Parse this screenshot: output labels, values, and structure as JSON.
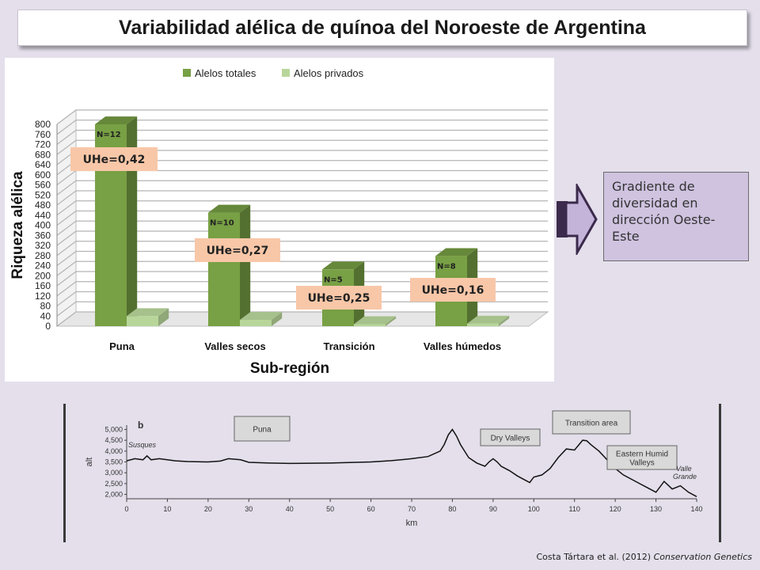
{
  "title": "Variabilidad alélica de quínoa del Noroeste de Argentina",
  "chart_data": [
    {
      "type": "bar",
      "title": "",
      "xlabel": "Sub-región",
      "ylabel": "Riqueza alélica",
      "ylim": [
        0,
        800
      ],
      "yticks": [
        0,
        40,
        80,
        120,
        160,
        200,
        240,
        280,
        320,
        360,
        400,
        440,
        480,
        520,
        560,
        600,
        640,
        680,
        720,
        760,
        800
      ],
      "grid": true,
      "legend_placement": "top",
      "categories": [
        "Puna",
        "Valles secos",
        "Transición",
        "Valles húmedos"
      ],
      "series": [
        {
          "name": "Alelos totales",
          "color": "#78a044",
          "values": [
            800,
            450,
            225,
            278
          ]
        },
        {
          "name": "Alelos privados",
          "color": "#b8d69a",
          "values": [
            40,
            25,
            8,
            10
          ]
        }
      ],
      "sample_labels": [
        "N=12",
        "N=10",
        "N=5",
        "N=8"
      ],
      "uhe_labels": [
        "UHe=0,42",
        "UHe=0,27",
        "UHe=0,25",
        "UHe=0,16"
      ]
    },
    {
      "type": "line",
      "panel_label": "b",
      "xlabel": "km",
      "ylabel": "alt",
      "xlim": [
        0,
        140
      ],
      "xticks": [
        0,
        10,
        20,
        30,
        40,
        50,
        60,
        70,
        80,
        90,
        100,
        110,
        120,
        130,
        140
      ],
      "ylim": [
        1800,
        5200
      ],
      "yticks": [
        2000,
        2500,
        3000,
        3500,
        4000,
        4500,
        5000
      ],
      "ytick_labels": [
        "2,000",
        "2,500",
        "3,000",
        "3,500",
        "4,000",
        "4,500",
        "5,000"
      ],
      "x": [
        0,
        2,
        4,
        5,
        6,
        8,
        10,
        12,
        15,
        20,
        23,
        25,
        28,
        30,
        35,
        40,
        50,
        60,
        65,
        70,
        74,
        77,
        78,
        79,
        80,
        81,
        82,
        84,
        86,
        88,
        89,
        90,
        91,
        92,
        94,
        96,
        98,
        99,
        100,
        102,
        104,
        106,
        108,
        110,
        112,
        113,
        114,
        116,
        118,
        120,
        122,
        124,
        126,
        128,
        130,
        132,
        134,
        136,
        138,
        140
      ],
      "y": [
        3550,
        3650,
        3600,
        3780,
        3600,
        3650,
        3600,
        3550,
        3520,
        3500,
        3540,
        3650,
        3600,
        3480,
        3450,
        3430,
        3450,
        3500,
        3560,
        3650,
        3750,
        4000,
        4300,
        4750,
        5000,
        4700,
        4300,
        3700,
        3450,
        3300,
        3500,
        3650,
        3500,
        3300,
        3100,
        2850,
        2650,
        2550,
        2800,
        2900,
        3200,
        3700,
        4100,
        4050,
        4500,
        4480,
        4300,
        4000,
        3600,
        3200,
        2900,
        2700,
        2500,
        2300,
        2100,
        2600,
        2250,
        2400,
        2100,
        1900
      ]
    }
  ],
  "profile_labels": {
    "puna": "Puna",
    "dry_valleys": "Dry Valleys",
    "transition": "Transition area",
    "humid_line1": "Eastern Humid",
    "humid_line2": "Valleys",
    "susques": "Susques",
    "valle_line1": "Valle",
    "valle_line2": "Grande"
  },
  "note": "Gradiente de diversidad en dirección Oeste-Este",
  "citation": {
    "text": "Costa Tártara et al. (2012) ",
    "journal": "Conservation Genetics"
  },
  "colors": {
    "accent_arrow": "#c4b4da",
    "arrow_dark": "#3c2a4c",
    "uhe_bg": "#f8c7a8"
  }
}
